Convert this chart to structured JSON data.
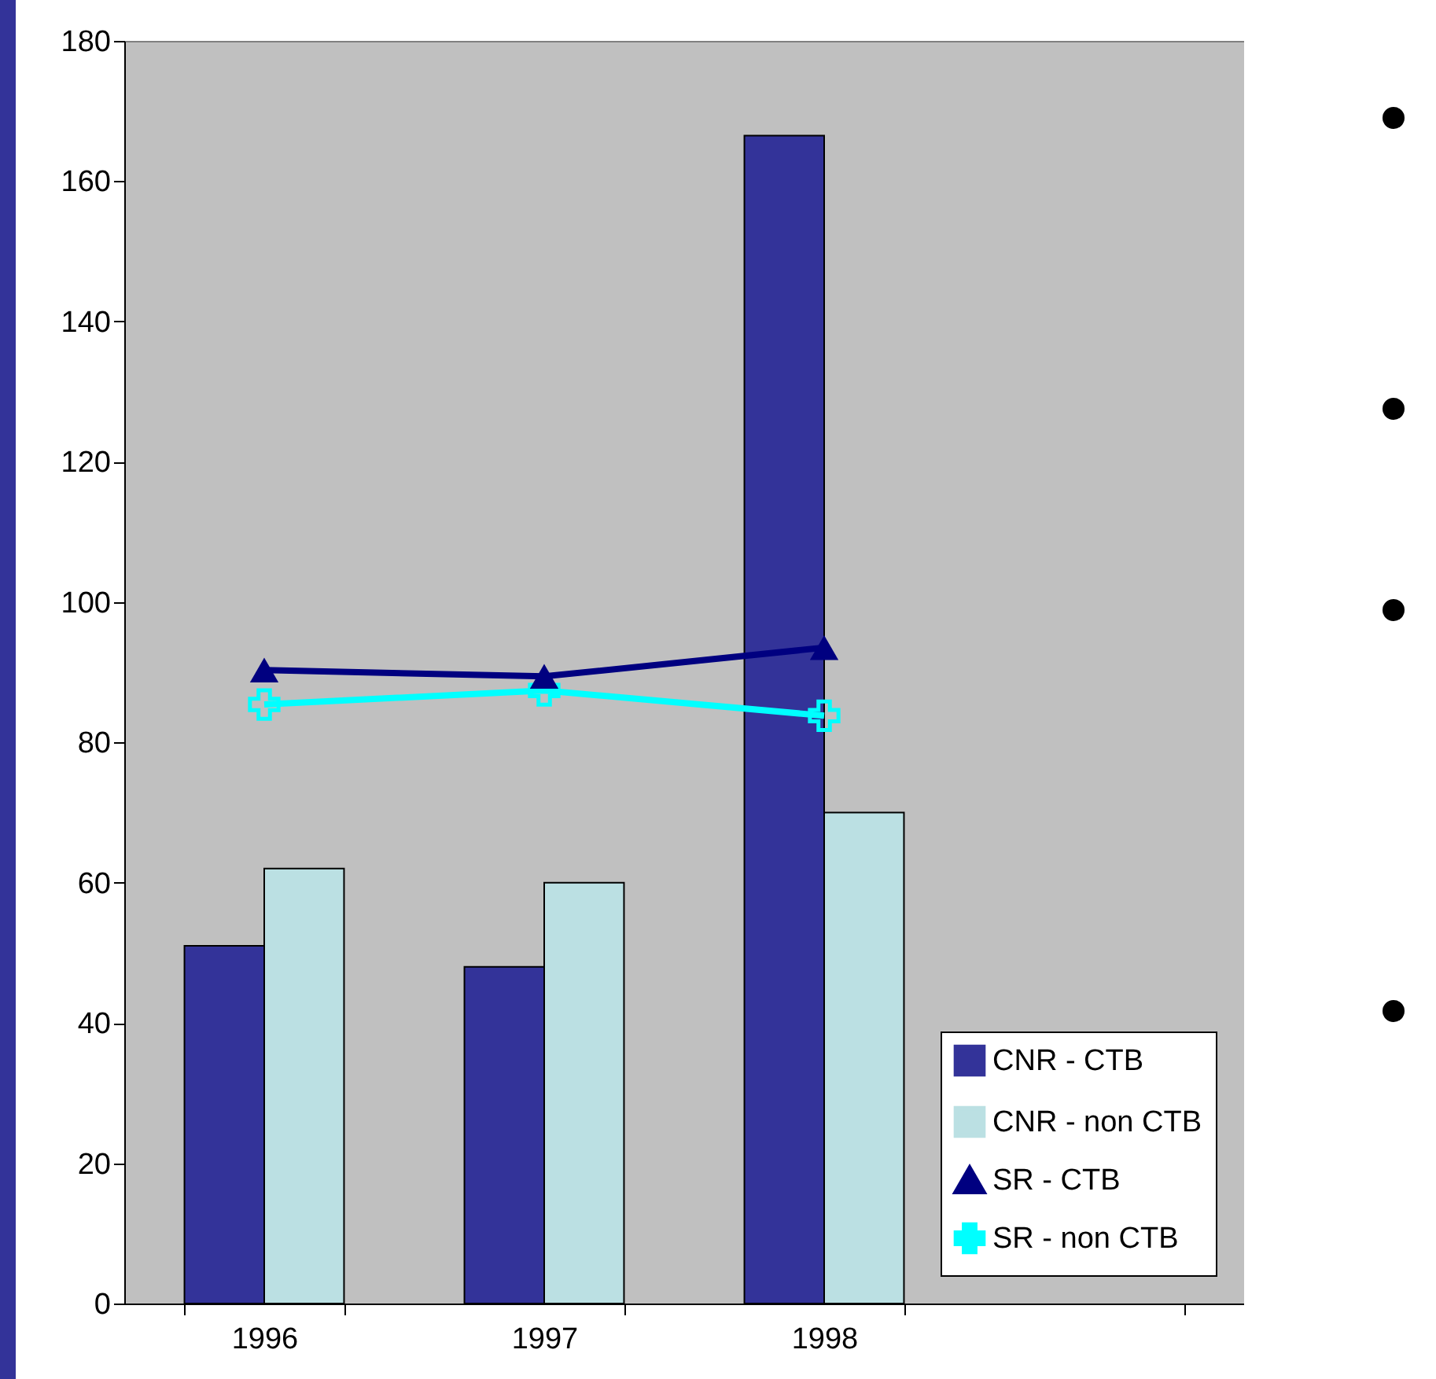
{
  "chart_data": {
    "type": "bar",
    "categories": [
      "1996",
      "1997",
      "1998",
      null
    ],
    "series": [
      {
        "name": "CNR - CTB",
        "color": "#333399",
        "values": [
          51,
          48,
          166.5,
          null
        ]
      },
      {
        "name": "CNR - non CTB",
        "color": "#bbe0e3",
        "values": [
          62,
          60,
          70,
          null
        ]
      },
      {
        "name": "SR - CTB",
        "type": "line",
        "marker": "triangle",
        "color": "#000080",
        "values": [
          90.3,
          89.4,
          93.5,
          null
        ]
      },
      {
        "name": "SR - non CTB",
        "type": "line",
        "marker": "cross",
        "color": "#00ffff",
        "values": [
          85.4,
          87.4,
          83.8,
          null
        ]
      }
    ],
    "ylim": [
      0,
      180
    ],
    "yticks": [
      0,
      20,
      40,
      60,
      80,
      100,
      120,
      140,
      160,
      180
    ],
    "grid": false,
    "legend": "bottom right"
  }
}
